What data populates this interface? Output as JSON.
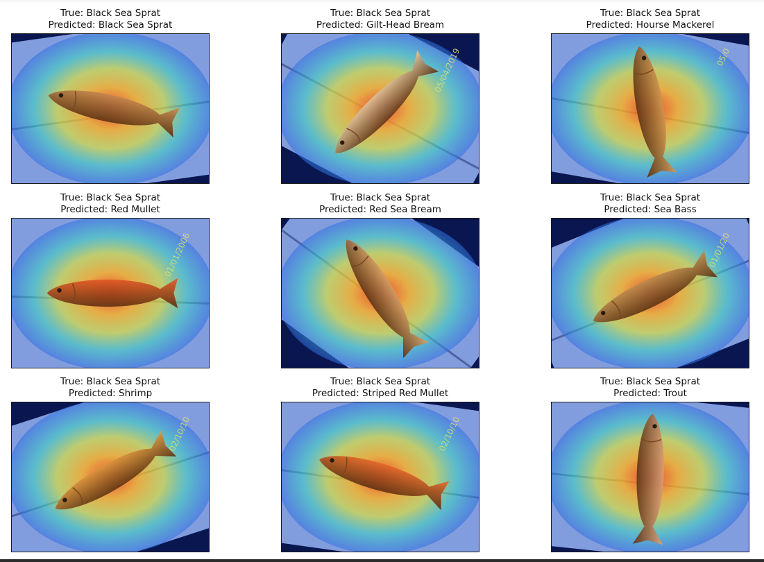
{
  "figure": {
    "panels": [
      {
        "true_label": "True: Black Sea Sprat",
        "predicted_label": "Predicted: Black Sea Sprat",
        "fish_color": "#c98a50",
        "board_angle": -8,
        "fish_angle": 12,
        "stamp_text": ""
      },
      {
        "true_label": "True: Black Sea Sprat",
        "predicted_label": "Predicted: Gilt-Head Bream",
        "fish_color": "#e6c8a0",
        "board_angle": 28,
        "fish_angle": -45,
        "stamp_text": "05/04/2019"
      },
      {
        "true_label": "True: Black Sea Sprat",
        "predicted_label": "Predicted: Hourse Mackerel",
        "fish_color": "#d59a52",
        "board_angle": 10,
        "fish_angle": 80,
        "stamp_text": "05/0"
      },
      {
        "true_label": "True: Black Sea Sprat",
        "predicted_label": "Predicted: Red Mullet",
        "fish_color": "#e85a28",
        "board_angle": 2,
        "fish_angle": 0,
        "stamp_text": "01/01/2006"
      },
      {
        "true_label": "True: Black Sea Sprat",
        "predicted_label": "Predicted: Red Sea Bream",
        "fish_color": "#d9a26a",
        "board_angle": 36,
        "fish_angle": 58,
        "stamp_text": ""
      },
      {
        "true_label": "True: Black Sea Sprat",
        "predicted_label": "Predicted: Sea Bass",
        "fish_color": "#c49052",
        "board_angle": -22,
        "fish_angle": -26,
        "stamp_text": "01/01/20"
      },
      {
        "true_label": "True: Black Sea Sprat",
        "predicted_label": "Predicted: Shrimp",
        "fish_color": "#e39a40",
        "board_angle": -18,
        "fish_angle": -30,
        "stamp_text": "02/10/10"
      },
      {
        "true_label": "True: Black Sea Sprat",
        "predicted_label": "Predicted: Striped Red Mullet",
        "fish_color": "#ea6a2c",
        "board_angle": 8,
        "fish_angle": 16,
        "stamp_text": "02/10/10"
      },
      {
        "true_label": "True: Black Sea Sprat",
        "predicted_label": "Predicted: Trout",
        "fish_color": "#e0a47c",
        "board_angle": 6,
        "fish_angle": 92,
        "stamp_text": ""
      }
    ]
  }
}
